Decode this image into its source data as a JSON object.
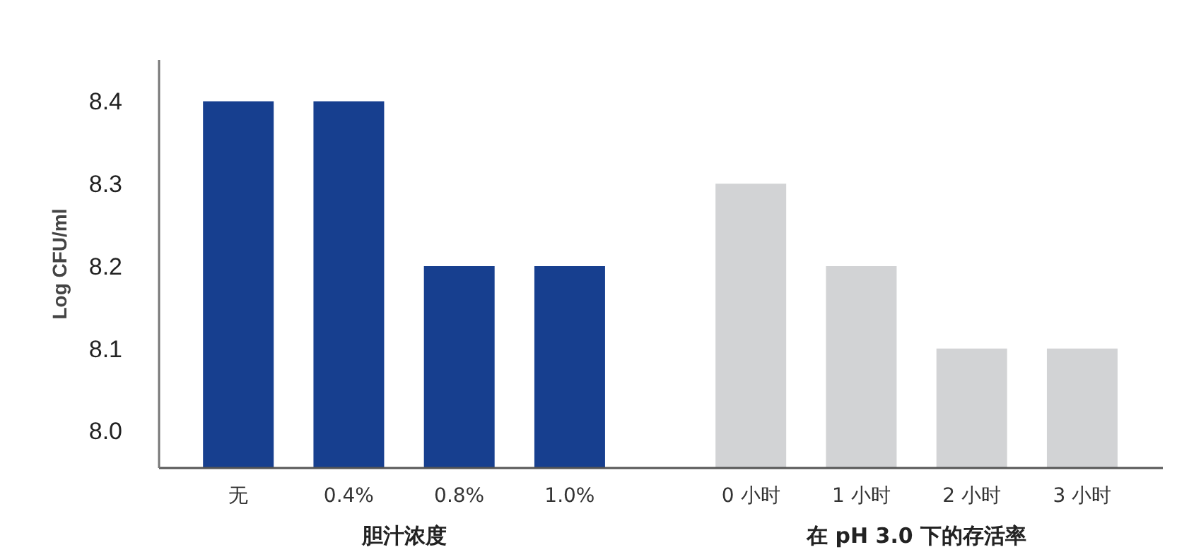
{
  "chart_data": {
    "type": "bar",
    "ylabel": "Log CFU/ml",
    "categories": [
      "无",
      "0.4%",
      "0.8%",
      "1.0%",
      "0 小时",
      "1 小时",
      "2 小时",
      "3 小时"
    ],
    "series": [
      {
        "name": "胆汁浓度",
        "color": "#173f8f",
        "values": [
          8.4,
          8.4,
          8.2,
          8.2,
          null,
          null,
          null,
          null
        ]
      },
      {
        "name": "在 pH 3.0 下的存活率",
        "color": "#d2d3d5",
        "values": [
          null,
          null,
          null,
          null,
          8.3,
          8.2,
          8.1,
          8.1
        ]
      }
    ],
    "ylim": [
      7.955,
      8.45
    ],
    "yticks": [
      {
        "value": 8.0,
        "label": "8.0"
      },
      8.1,
      8.2,
      8.3,
      8.4
    ],
    "grid": false
  }
}
